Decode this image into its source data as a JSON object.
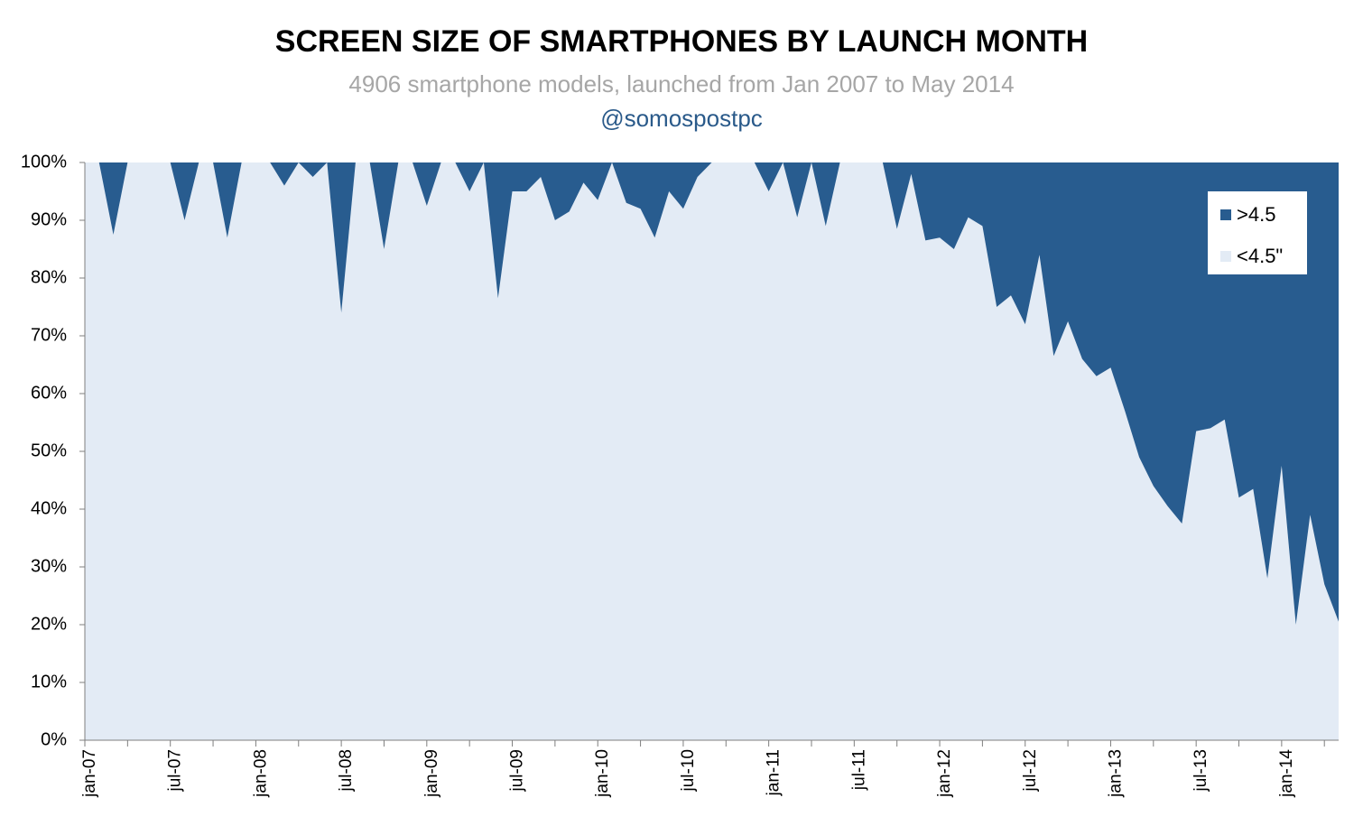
{
  "chart_data": {
    "type": "stacked_area",
    "title": "SCREEN SIZE OF SMARTPHONES BY LAUNCH MONTH",
    "subtitle": "4906 smartphone models, launched from Jan 2007 to May 2014",
    "annotation": "@somospostpc",
    "categories": [
      "jan-07",
      null,
      null,
      null,
      null,
      null,
      "jul-07",
      null,
      null,
      null,
      null,
      null,
      "jan-08",
      null,
      null,
      null,
      null,
      null,
      "jul-08",
      null,
      null,
      null,
      null,
      null,
      "jan-09",
      null,
      null,
      null,
      null,
      null,
      "jul-09",
      null,
      null,
      null,
      null,
      null,
      "jan-10",
      null,
      null,
      null,
      null,
      null,
      "jul-10",
      null,
      null,
      null,
      null,
      null,
      "jan-11",
      null,
      null,
      null,
      null,
      null,
      "jul-11",
      null,
      null,
      null,
      null,
      null,
      "jan-12",
      null,
      null,
      null,
      null,
      null,
      "jul-12",
      null,
      null,
      null,
      null,
      null,
      "jan-13",
      null,
      null,
      null,
      null,
      null,
      "jul-13",
      null,
      null,
      null,
      null,
      null,
      "jan-14",
      null,
      null,
      null,
      null
    ],
    "series": [
      {
        "name": "<4.5\"",
        "color": "#e3ebf5",
        "values": [
          100,
          100,
          87.5,
          100,
          100,
          100,
          100,
          90,
          100,
          100,
          87,
          100,
          100,
          100,
          96,
          100,
          97.5,
          100,
          74,
          100,
          100,
          85,
          100,
          100,
          92.5,
          100,
          100,
          95,
          100,
          76.5,
          95,
          95,
          97.5,
          90,
          91.5,
          96.5,
          93.5,
          100,
          93,
          92,
          87,
          95,
          92,
          97.5,
          100,
          100,
          100,
          100,
          95,
          100,
          90.5,
          100,
          89,
          100,
          100,
          100,
          100,
          88.5,
          98,
          86.5,
          87,
          85,
          90.5,
          89,
          75,
          77,
          72,
          84,
          66.5,
          72.5,
          66,
          63,
          64.5,
          57,
          49,
          44,
          40.5,
          37.5,
          53.5,
          54,
          55.5,
          42,
          43.5,
          28,
          47.5,
          20,
          39,
          27,
          20.5
        ]
      },
      {
        "name": ">4.5",
        "color": "#285c8f",
        "values": [
          0,
          0,
          12.5,
          0,
          0,
          0,
          0,
          10,
          0,
          0,
          13,
          0,
          0,
          0,
          4,
          0,
          2.5,
          0,
          26,
          0,
          0,
          15,
          0,
          0,
          7.5,
          0,
          0,
          5,
          0,
          23.5,
          5,
          5,
          2.5,
          10,
          8.5,
          3.5,
          6.5,
          0,
          7,
          8,
          13,
          5,
          8,
          2.5,
          0,
          0,
          0,
          0,
          5,
          0,
          9.5,
          0,
          11,
          0,
          0,
          0,
          0,
          11.5,
          2,
          13.5,
          13,
          15,
          9.5,
          11,
          25,
          23,
          28,
          16,
          33.5,
          27.5,
          34,
          37,
          35.5,
          43,
          51,
          56,
          59.5,
          62.5,
          46.5,
          46,
          44.5,
          58,
          56.5,
          72,
          52.5,
          80,
          61,
          73,
          79.5
        ]
      }
    ],
    "ylim": [
      0,
      100
    ],
    "yticks": [
      {
        "value": 0,
        "label": "0%"
      },
      {
        "value": 10,
        "label": "10%"
      },
      {
        "value": 20,
        "label": "20%"
      },
      {
        "value": 30,
        "label": "30%"
      },
      {
        "value": 40,
        "label": "40%"
      },
      {
        "value": 50,
        "label": "50%"
      },
      {
        "value": 60,
        "label": "60%"
      },
      {
        "value": 70,
        "label": "70%"
      },
      {
        "value": 80,
        "label": "80%"
      },
      {
        "value": 90,
        "label": "90%"
      },
      {
        "value": 100,
        "label": "100%"
      }
    ],
    "grid": false,
    "legend": "upper right"
  }
}
